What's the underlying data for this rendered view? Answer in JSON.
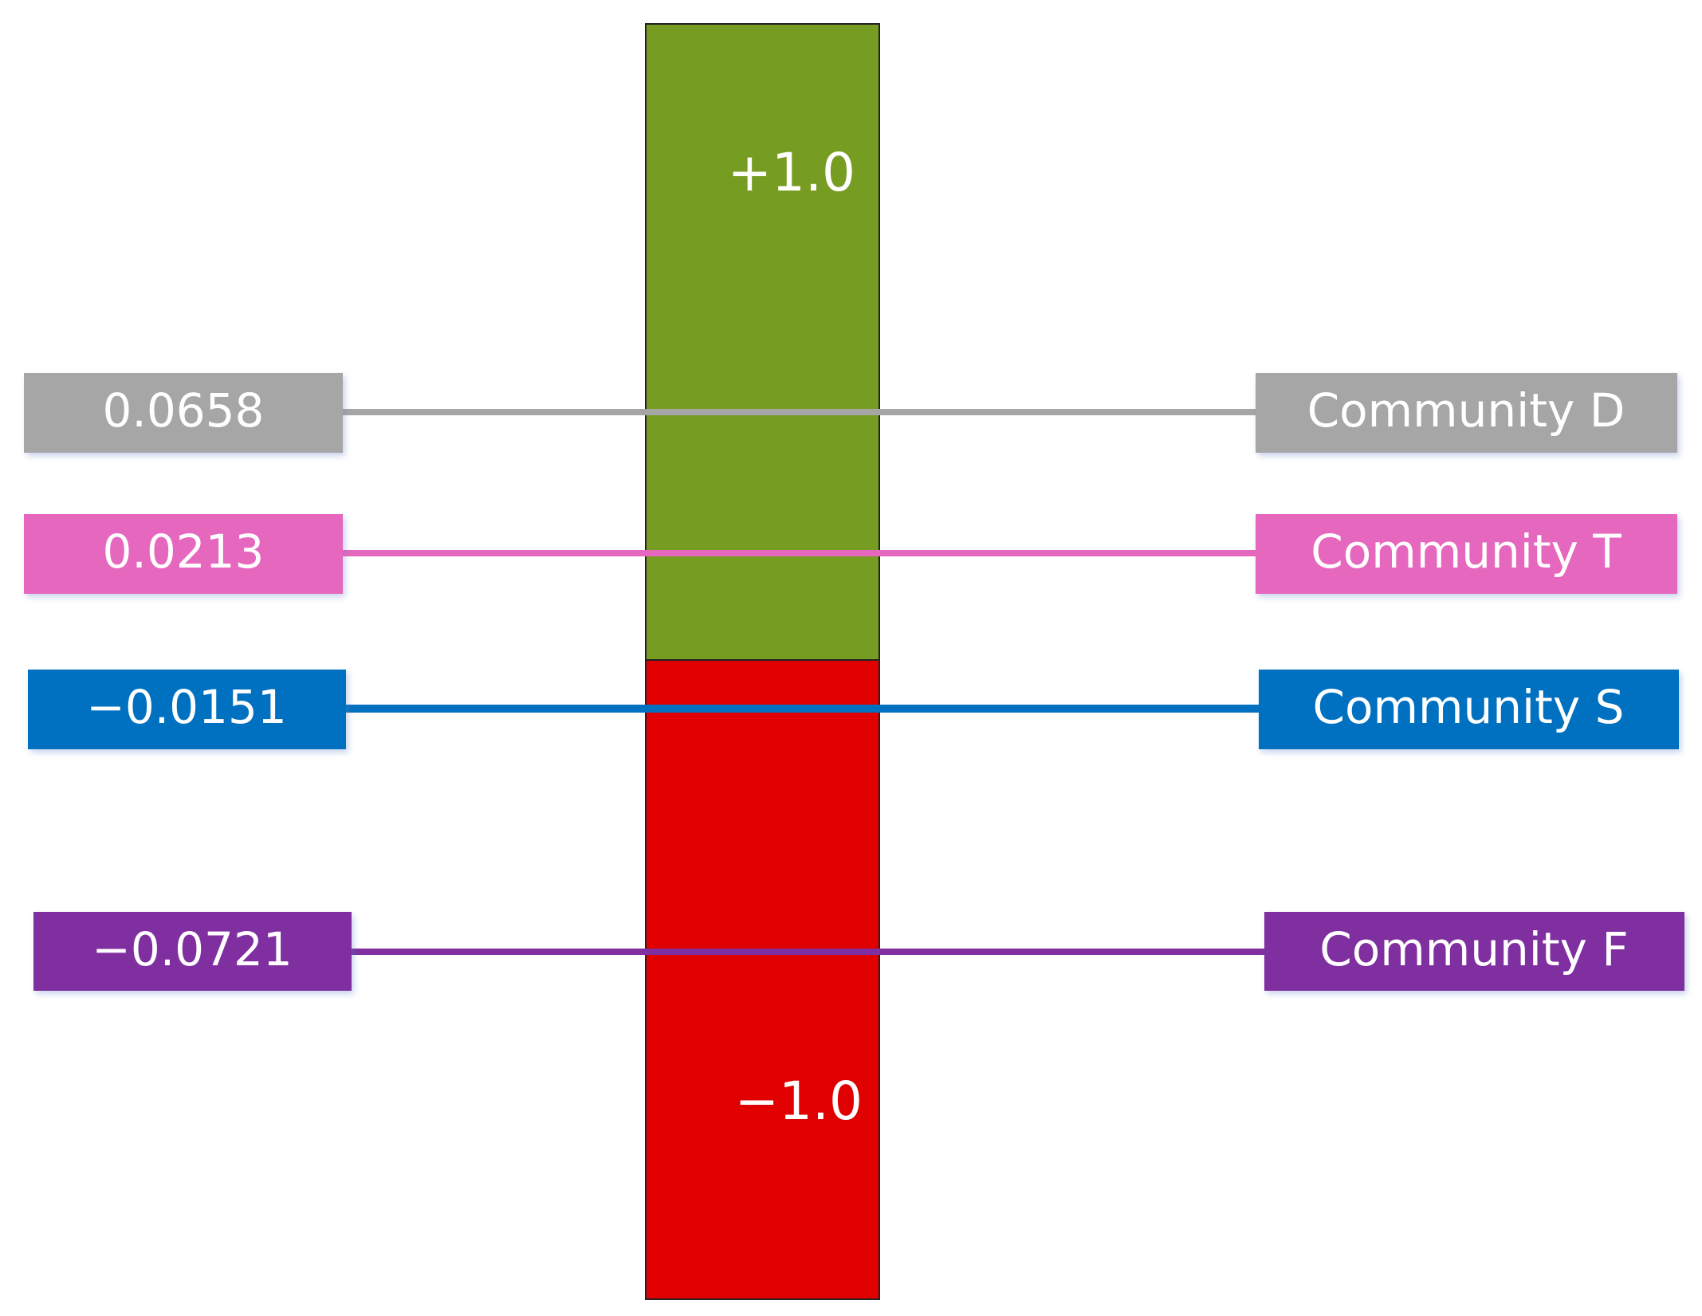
{
  "scale": {
    "top_label": "+1.0",
    "bottom_label": "−1.0"
  },
  "communities": [
    {
      "value": "0.0658",
      "name": "Community D"
    },
    {
      "value": "0.0213",
      "name": "Community T"
    },
    {
      "value": "−0.0151",
      "name": "Community S"
    },
    {
      "value": "−0.0721",
      "name": "Community F"
    }
  ]
}
